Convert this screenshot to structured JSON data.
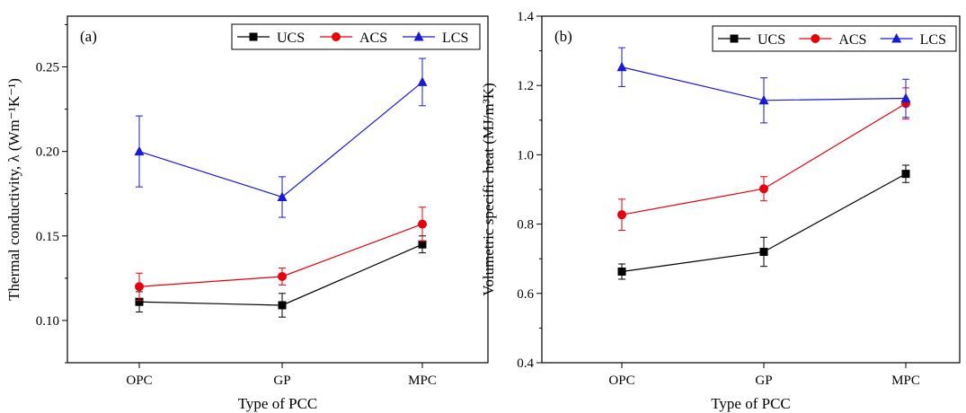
{
  "chart_data": [
    {
      "type": "line",
      "panel_label": "(a)",
      "categories": [
        "OPC",
        "GP",
        "MPC"
      ],
      "xlabel": "Type of PCC",
      "ylabel": "Thermal conductivity, λ (Wm⁻¹K⁻¹)",
      "ylim": [
        0.075,
        0.28
      ],
      "yticks": [
        0.1,
        0.15,
        0.2,
        0.25
      ],
      "ytick_labels": [
        "0.10",
        "0.15",
        "0.20",
        "0.25"
      ],
      "legend_position": "top-right",
      "grid": false,
      "series": [
        {
          "name": "UCS",
          "color": "#000000",
          "marker": "square",
          "values": [
            0.111,
            0.109,
            0.145
          ],
          "errors": [
            0.006,
            0.007,
            0.005
          ]
        },
        {
          "name": "ACS",
          "color": "#e8000b",
          "marker": "circle",
          "values": [
            0.12,
            0.126,
            0.157
          ],
          "errors": [
            0.008,
            0.005,
            0.01
          ]
        },
        {
          "name": "LCS",
          "color": "#1a1ad6",
          "marker": "triangle",
          "values": [
            0.2,
            0.173,
            0.241
          ],
          "errors": [
            0.021,
            0.012,
            0.014
          ]
        }
      ]
    },
    {
      "type": "line",
      "panel_label": "(b)",
      "categories": [
        "OPC",
        "GP",
        "MPC"
      ],
      "xlabel": "Type of PCC",
      "ylabel": "Volumetric specific heat (MJ/m³K)",
      "ylim": [
        0.4,
        1.4
      ],
      "yticks": [
        0.4,
        0.6,
        0.8,
        1.0,
        1.2,
        1.4
      ],
      "ytick_labels": [
        "0.4",
        "0.6",
        "0.8",
        "1.0",
        "1.2",
        "1.4"
      ],
      "legend_position": "top-right",
      "grid": false,
      "series": [
        {
          "name": "UCS",
          "color": "#000000",
          "marker": "square",
          "values": [
            0.663,
            0.72,
            0.945
          ],
          "errors": [
            0.022,
            0.042,
            0.025
          ]
        },
        {
          "name": "ACS",
          "color": "#e8000b",
          "marker": "circle",
          "values": [
            0.827,
            0.902,
            1.148
          ],
          "errors": [
            0.045,
            0.035,
            0.045
          ]
        },
        {
          "name": "LCS",
          "color": "#1a1ad6",
          "marker": "triangle",
          "values": [
            1.253,
            1.157,
            1.163
          ],
          "errors": [
            0.056,
            0.065,
            0.055
          ]
        }
      ]
    }
  ]
}
